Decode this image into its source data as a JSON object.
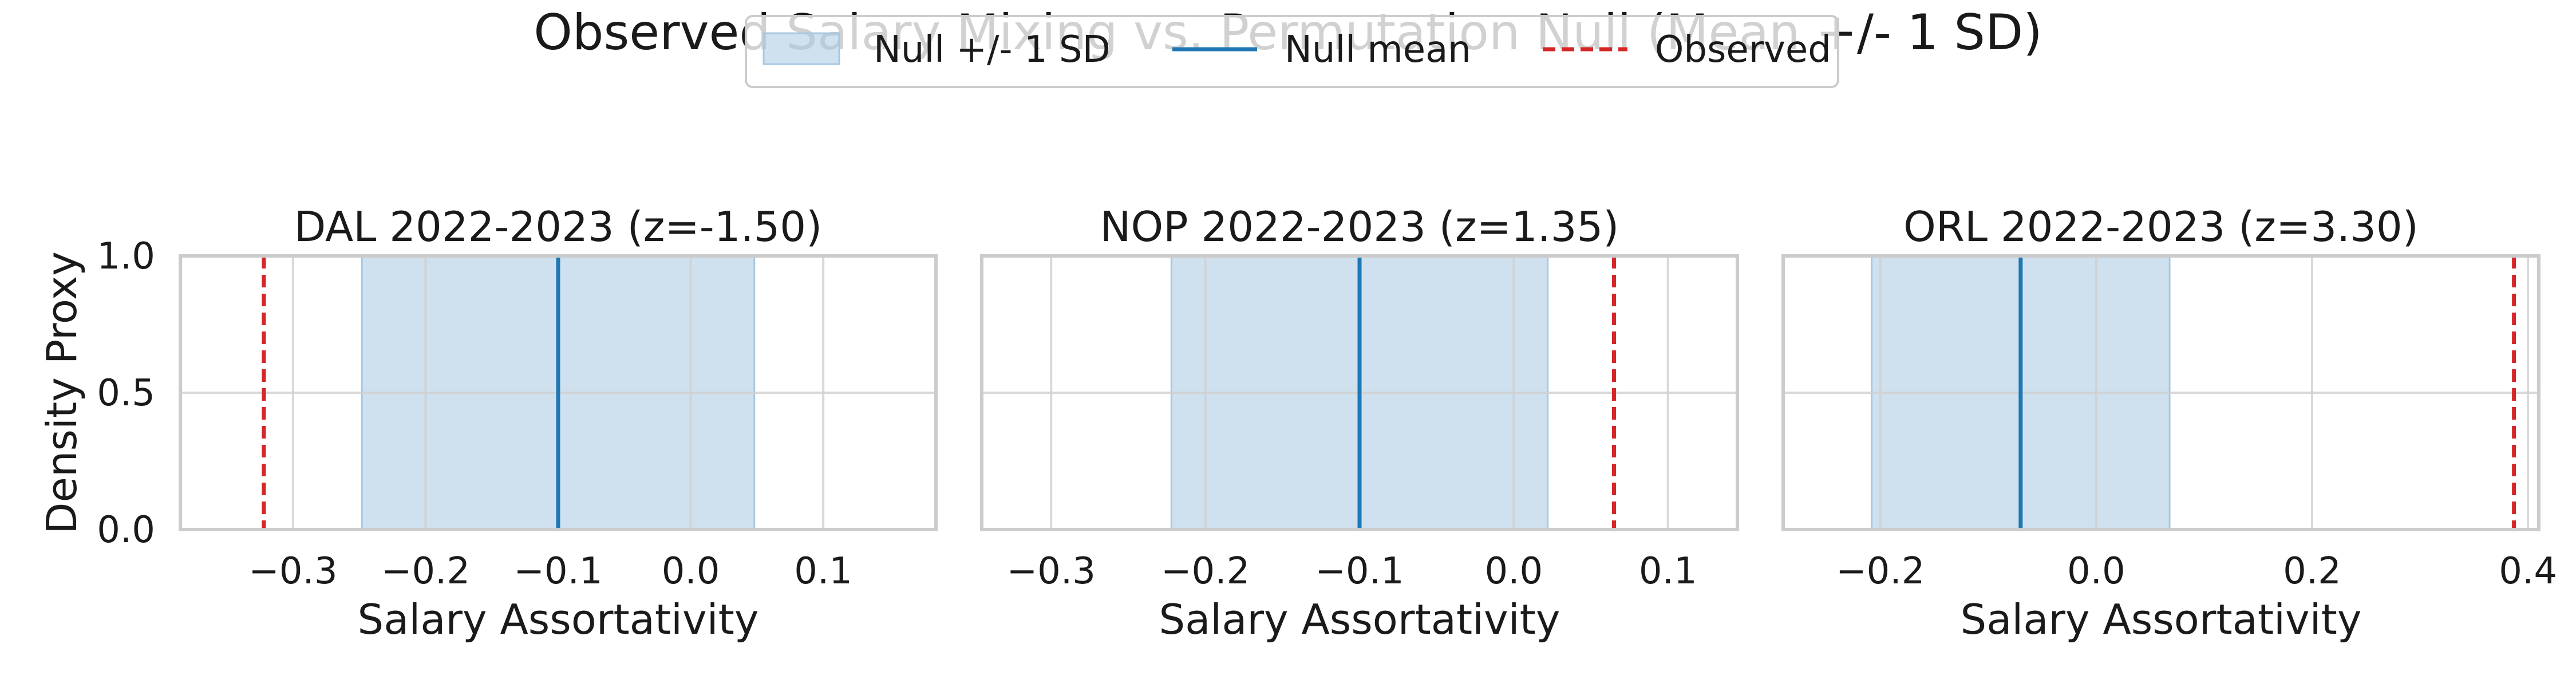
{
  "title": "Observed Salary Mixing vs. Permutation Null (Mean +/- 1 SD)",
  "legend": {
    "placement": "top-center",
    "items": [
      {
        "label": "Null +/- 1 SD",
        "kind": "band"
      },
      {
        "label": "Null mean",
        "kind": "line"
      },
      {
        "label": "Observed",
        "kind": "dashed"
      }
    ]
  },
  "colors": {
    "band": "#a8c8e2",
    "null_mean": "#1f77b4",
    "observed": "#d62728",
    "grid": "#cfcfcf",
    "spine": "#cccccc"
  },
  "chart_data": [
    {
      "type": "line",
      "title": "DAL 2022-2023 (z=-1.50)",
      "xlabel": "Salary Assortativity",
      "ylabel": "Density Proxy",
      "xlim": [
        -0.385,
        0.185
      ],
      "ylim": [
        0,
        1
      ],
      "xticks": [
        -0.3,
        -0.2,
        -0.1,
        0.0,
        0.1
      ],
      "xtick_labels": [
        "−0.3",
        "−0.2",
        "−0.1",
        "0.0",
        "0.1"
      ],
      "yticks": [
        0.0,
        0.5,
        1.0
      ],
      "ytick_labels": [
        "0.0",
        "0.5",
        "1.0"
      ],
      "grid": true,
      "null_mean": -0.1,
      "null_sd_band": [
        -0.248,
        0.048
      ],
      "observed": -0.322
    },
    {
      "type": "line",
      "title": "NOP 2022-2023 (z=1.35)",
      "xlabel": "Salary Assortativity",
      "ylabel": "",
      "xlim": [
        -0.345,
        0.145
      ],
      "ylim": [
        0,
        1
      ],
      "xticks": [
        -0.3,
        -0.2,
        -0.1,
        0.0,
        0.1
      ],
      "xtick_labels": [
        "−0.3",
        "−0.2",
        "−0.1",
        "0.0",
        "0.1"
      ],
      "yticks": [
        0.0,
        0.5,
        1.0
      ],
      "ytick_labels": [
        "",
        "",
        ""
      ],
      "grid": true,
      "null_mean": -0.1,
      "null_sd_band": [
        -0.222,
        0.022
      ],
      "observed": 0.065
    },
    {
      "type": "line",
      "title": "ORL 2022-2023 (z=3.30)",
      "xlabel": "Salary Assortativity",
      "ylabel": "",
      "xlim": [
        -0.29,
        0.41
      ],
      "ylim": [
        0,
        1
      ],
      "xticks": [
        -0.2,
        0.0,
        0.2,
        0.4
      ],
      "xtick_labels": [
        "−0.2",
        "0.0",
        "0.2",
        "0.4"
      ],
      "yticks": [
        0.0,
        0.5,
        1.0
      ],
      "ytick_labels": [
        "",
        "",
        ""
      ],
      "grid": true,
      "null_mean": -0.07,
      "null_sd_band": [
        -0.208,
        0.068
      ],
      "observed": 0.387
    }
  ]
}
